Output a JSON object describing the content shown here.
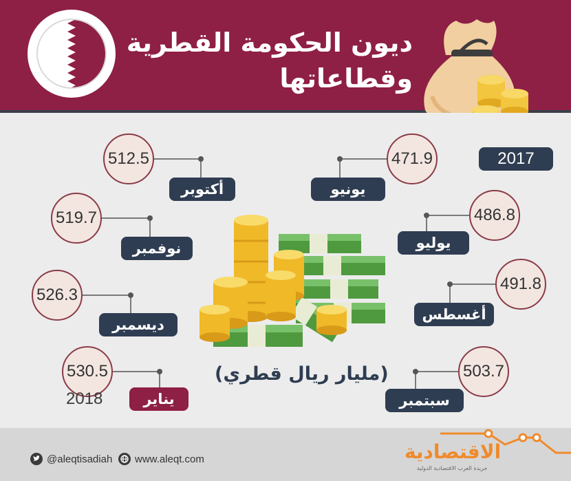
{
  "title": {
    "line1": "ديون الحكومة القطرية",
    "line2": "وقطاعاتها"
  },
  "year_2017": "2017",
  "year_2018": "2018",
  "unit": "(مليار ريال قطري)",
  "months": [
    {
      "name": "يونيو",
      "value": "471.9",
      "year": "2017"
    },
    {
      "name": "يوليو",
      "value": "486.8",
      "year": "2017"
    },
    {
      "name": "أغسطس",
      "value": "491.8",
      "year": "2017"
    },
    {
      "name": "سبتمبر",
      "value": "503.7",
      "year": "2017"
    },
    {
      "name": "أكتوبر",
      "value": "512.5",
      "year": "2017"
    },
    {
      "name": "نوفمبر",
      "value": "519.7",
      "year": "2017"
    },
    {
      "name": "ديسمبر",
      "value": "526.3",
      "year": "2017"
    },
    {
      "name": "يناير",
      "value": "530.5",
      "year": "2018"
    }
  ],
  "footer": {
    "twitter": "@aleqtisadiah",
    "website": "www.aleqt.com",
    "logo": "الاقتصادية",
    "logo_sub": "جريدة العرب الاقتصادية الدولية"
  },
  "icons": [
    "qatar-flag-icon",
    "money-bag-icon",
    "coins-and-cash-icon",
    "twitter-icon",
    "globe-icon",
    "trend-line-icon"
  ],
  "colors": {
    "maroon": "#8e1f45",
    "navy": "#2f3d52",
    "bubble_fill": "#f3e6e1",
    "accent_orange": "#f08a2c"
  }
}
